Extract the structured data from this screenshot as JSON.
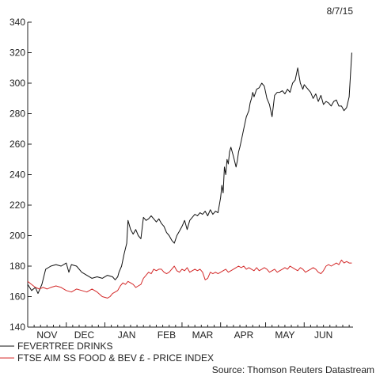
{
  "chart_data": {
    "type": "line",
    "date": "8/7/15",
    "source": "Source: Thomson Reuters Datastream",
    "ylim": [
      140,
      340
    ],
    "yticks": [
      140,
      160,
      180,
      200,
      220,
      240,
      260,
      280,
      300,
      320,
      340
    ],
    "xlim": [
      0,
      253
    ],
    "xticks": [
      {
        "label": "NOV",
        "x": 15
      },
      {
        "label": "DEC",
        "x": 44
      },
      {
        "label": "JAN",
        "x": 77
      },
      {
        "label": "FEB",
        "x": 108
      },
      {
        "label": "MAR",
        "x": 136
      },
      {
        "label": "APR",
        "x": 168
      },
      {
        "label": "MAY",
        "x": 200
      },
      {
        "label": "JUN",
        "x": 230
      }
    ],
    "grid": false,
    "legend_position": "bottom-left",
    "series": [
      {
        "name": "FEVERTREE DRINKS",
        "color": "#111111",
        "x": [
          0,
          3,
          6,
          8,
          11,
          14,
          18,
          22,
          26,
          30,
          32,
          34,
          38,
          42,
          46,
          50,
          54,
          58,
          62,
          66,
          68,
          70,
          71,
          73,
          75,
          77,
          78,
          80,
          82,
          84,
          86,
          88,
          90,
          92,
          94,
          96,
          98,
          100,
          102,
          104,
          106,
          108,
          110,
          112,
          114,
          116,
          118,
          120,
          122,
          124,
          126,
          128,
          130,
          132,
          134,
          136,
          138,
          140,
          142,
          144,
          146,
          148,
          150,
          151,
          152,
          153,
          154,
          155,
          156,
          157,
          158,
          160,
          162,
          163,
          164,
          165,
          166,
          168,
          170,
          172,
          173,
          174,
          175,
          176,
          178,
          180,
          182,
          184,
          186,
          188,
          190,
          192,
          194,
          196,
          198,
          200,
          202,
          204,
          206,
          208,
          210,
          212,
          214,
          215,
          216,
          218,
          220,
          222,
          224,
          226,
          228,
          230,
          232,
          234,
          236,
          238,
          240,
          242,
          244,
          246,
          248,
          250,
          252
        ],
        "values": [
          168,
          164,
          166,
          162,
          168,
          178,
          180,
          181,
          180,
          182,
          176,
          181,
          180,
          176,
          174,
          172,
          173,
          172,
          174,
          173,
          171,
          173,
          176,
          180,
          188,
          195,
          210,
          204,
          201,
          204,
          200,
          198,
          212,
          210,
          211,
          213,
          211,
          209,
          211,
          208,
          206,
          202,
          200,
          197,
          195,
          200,
          203,
          206,
          210,
          204,
          210,
          212,
          214,
          213,
          215,
          214,
          216,
          213,
          217,
          214,
          216,
          215,
          225,
          233,
          228,
          245,
          240,
          250,
          247,
          255,
          258,
          252,
          245,
          249,
          255,
          258,
          262,
          270,
          278,
          282,
          287,
          290,
          294,
          291,
          296,
          297,
          300,
          298,
          290,
          286,
          278,
          292,
          294,
          294,
          295,
          293,
          296,
          294,
          300,
          302,
          310,
          300,
          296,
          299,
          298,
          296,
          294,
          290,
          293,
          288,
          292,
          286,
          288,
          287,
          285,
          288,
          289,
          285,
          285,
          282,
          284,
          291,
          320
        ]
      },
      {
        "name": "FTSE AIM SS FOOD & BEV £ - PRICE INDEX",
        "color": "#d42a2a",
        "x": [
          0,
          3,
          6,
          9,
          12,
          15,
          18,
          22,
          26,
          30,
          34,
          38,
          42,
          46,
          50,
          54,
          58,
          62,
          64,
          66,
          68,
          70,
          72,
          74,
          76,
          78,
          80,
          82,
          84,
          86,
          88,
          90,
          92,
          94,
          96,
          98,
          100,
          102,
          104,
          106,
          108,
          110,
          112,
          114,
          116,
          118,
          120,
          122,
          124,
          126,
          128,
          130,
          132,
          134,
          136,
          138,
          140,
          142,
          144,
          146,
          148,
          150,
          152,
          154,
          156,
          158,
          160,
          162,
          164,
          166,
          168,
          170,
          172,
          174,
          176,
          178,
          180,
          182,
          184,
          186,
          188,
          190,
          192,
          194,
          196,
          198,
          200,
          202,
          204,
          206,
          208,
          210,
          212,
          214,
          216,
          218,
          220,
          222,
          224,
          226,
          228,
          230,
          232,
          234,
          236,
          238,
          240,
          242,
          244,
          246,
          248,
          250,
          252
        ],
        "values": [
          170,
          168,
          166,
          165,
          166,
          165,
          166,
          167,
          166,
          164,
          163,
          165,
          164,
          163,
          165,
          163,
          160,
          159,
          160,
          162,
          163,
          164,
          167,
          169,
          168,
          170,
          169,
          168,
          166,
          167,
          168,
          172,
          174,
          176,
          175,
          178,
          177,
          178,
          178,
          176,
          175,
          176,
          178,
          180,
          177,
          176,
          178,
          177,
          179,
          176,
          177,
          178,
          177,
          178,
          176,
          171,
          172,
          176,
          175,
          176,
          175,
          176,
          177,
          178,
          176,
          177,
          178,
          179,
          180,
          179,
          180,
          178,
          179,
          178,
          177,
          179,
          177,
          178,
          179,
          178,
          176,
          177,
          178,
          176,
          177,
          178,
          179,
          178,
          180,
          179,
          178,
          177,
          179,
          178,
          176,
          177,
          178,
          179,
          178,
          176,
          175,
          177,
          180,
          181,
          180,
          181,
          182,
          181,
          184,
          182,
          183,
          182,
          182
        ]
      }
    ]
  }
}
